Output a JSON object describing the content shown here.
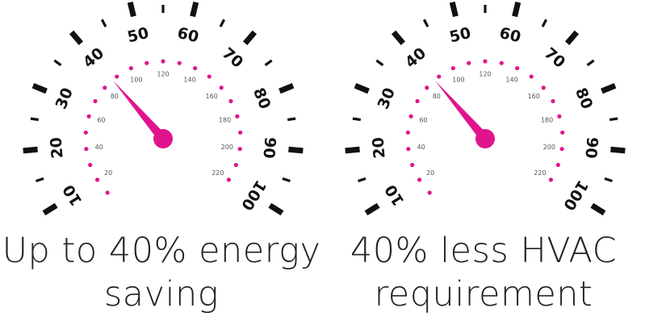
{
  "colors": {
    "ink": "#111111",
    "accent": "#e0158e",
    "text": "#222222"
  },
  "gauge_outer_labels": [
    "10",
    "20",
    "30",
    "40",
    "50",
    "60",
    "70",
    "80",
    "90",
    "100"
  ],
  "gauge_inner_labels": [
    "20",
    "40",
    "60",
    "80",
    "100",
    "120",
    "140",
    "160",
    "180",
    "200",
    "220"
  ],
  "gauges": [
    {
      "needle_value": 40,
      "caption_line1": "Up to 40% energy",
      "caption_line2": "saving"
    },
    {
      "needle_value": 40,
      "caption_line1": "40% less HVAC",
      "caption_line2": "requirement"
    }
  ]
}
